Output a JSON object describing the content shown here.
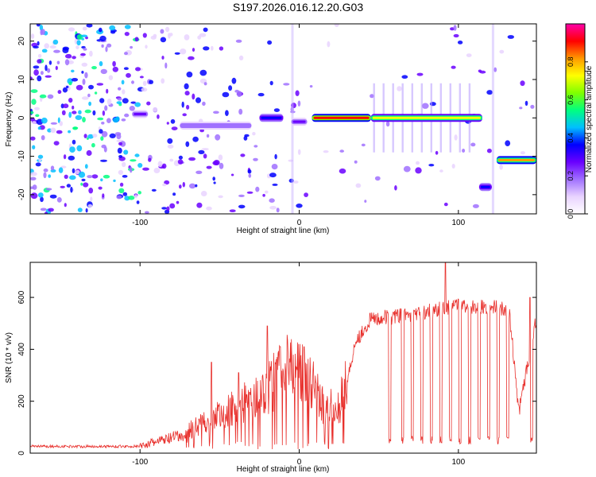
{
  "title": "S197.2026.016.12.20.G03",
  "chart_data": [
    {
      "type": "heatmap",
      "xlabel": "Height of straight line (km)",
      "ylabel": "Frequency (Hz)",
      "xlim": [
        -169,
        149
      ],
      "ylim": [
        -25,
        24.5
      ],
      "xticks": [
        -100,
        0,
        100
      ],
      "yticks": [
        -20,
        -10,
        0,
        10,
        20
      ],
      "colorbar": {
        "label": "Normalized spectral amplitude",
        "range": [
          0,
          1
        ],
        "ticks": [
          0.0,
          0.2,
          0.4,
          0.6,
          0.8
        ],
        "tick_labels": [
          "0.0",
          "0.2",
          "0.4",
          "0.6",
          "0.8"
        ],
        "colors": [
          "#ffffff",
          "#e9d3ff",
          "#a070ff",
          "#6a00ff",
          "#0000ff",
          "#00bfff",
          "#00ff80",
          "#7fff00",
          "#ffff00",
          "#ff9900",
          "#ff0000",
          "#ff00aa"
        ]
      },
      "bands": [
        {
          "x_start": -105,
          "x_end": -95,
          "freq": 1,
          "amplitude": 0.25
        },
        {
          "x_start": -75,
          "x_end": -30,
          "freq": -2,
          "amplitude": 0.22
        },
        {
          "x_start": -25,
          "x_end": -10,
          "freq": 0,
          "amplitude": 0.35
        },
        {
          "x_start": -5,
          "x_end": 5,
          "freq": -1,
          "amplitude": 0.3
        },
        {
          "x_start": 8,
          "x_end": 45,
          "freq": 0,
          "amplitude": 0.95
        },
        {
          "x_start": 45,
          "x_end": 115,
          "freq": 0,
          "amplitude": 0.75
        },
        {
          "x_start": 113,
          "x_end": 121,
          "freq": -18,
          "amplitude": 0.35
        },
        {
          "x_start": 124,
          "x_end": 149,
          "freq": -11,
          "amplitude": 0.8
        }
      ]
    },
    {
      "type": "line",
      "xlabel": "Height of straight line (km)",
      "ylabel": "SNR (10 * v/v)",
      "xlim": [
        -169,
        149
      ],
      "ylim": [
        0,
        735
      ],
      "xticks": [
        -100,
        0,
        100
      ],
      "yticks": [
        0,
        200,
        400,
        600
      ],
      "color": "#e8302c",
      "baseline_segments": [
        {
          "x": -169,
          "snr": 25
        },
        {
          "x": -100,
          "snr": 25
        },
        {
          "x": -90,
          "snr": 40
        },
        {
          "x": -75,
          "snr": 60
        },
        {
          "x": -60,
          "snr": 110
        },
        {
          "x": -40,
          "snr": 160
        },
        {
          "x": -20,
          "snr": 220
        },
        {
          "x": -10,
          "snr": 300
        },
        {
          "x": 0,
          "snr": 320
        },
        {
          "x": 8,
          "snr": 240
        },
        {
          "x": 15,
          "snr": 170
        },
        {
          "x": 25,
          "snr": 160
        },
        {
          "x": 30,
          "snr": 260
        },
        {
          "x": 35,
          "snr": 420
        },
        {
          "x": 45,
          "snr": 510
        },
        {
          "x": 60,
          "snr": 520
        },
        {
          "x": 80,
          "snr": 540
        },
        {
          "x": 100,
          "snr": 560
        },
        {
          "x": 120,
          "snr": 560
        },
        {
          "x": 132,
          "snr": 540
        },
        {
          "x": 138,
          "snr": 150
        },
        {
          "x": 149,
          "snr": 520
        }
      ],
      "peaks": [
        {
          "x": -55,
          "snr": 350
        },
        {
          "x": -38,
          "snr": 310
        },
        {
          "x": -20,
          "snr": 490
        },
        {
          "x": -12,
          "snr": 410
        },
        {
          "x": 3,
          "snr": 410
        },
        {
          "x": 92,
          "snr": 735
        },
        {
          "x": 145,
          "snr": 600
        }
      ],
      "dropouts": [
        57,
        65,
        71,
        77,
        83,
        89,
        95,
        101,
        107,
        113,
        119,
        125,
        131,
        146
      ]
    }
  ]
}
